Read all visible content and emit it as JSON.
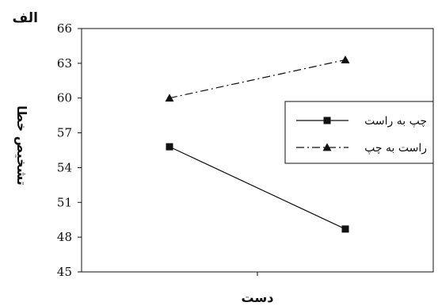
{
  "panel_label": "الف",
  "chart_data": {
    "type": "line",
    "title": "",
    "xlabel": "دست",
    "ylabel": "تشخیص خطا",
    "x": [
      1,
      2
    ],
    "xlim": [
      0.5,
      2.5
    ],
    "ylim": [
      45,
      66
    ],
    "yticks": [
      45,
      48,
      51,
      54,
      57,
      60,
      63,
      66
    ],
    "grid": false,
    "legend_position": "right",
    "series": [
      {
        "name": "چپ به راست",
        "values": [
          55.8,
          48.7
        ],
        "marker": "square",
        "line_style": "solid",
        "color": "#111111"
      },
      {
        "name": "راست به چپ",
        "values": [
          60.0,
          63.3
        ],
        "marker": "triangle",
        "line_style": "dash-dot",
        "color": "#111111"
      }
    ]
  }
}
